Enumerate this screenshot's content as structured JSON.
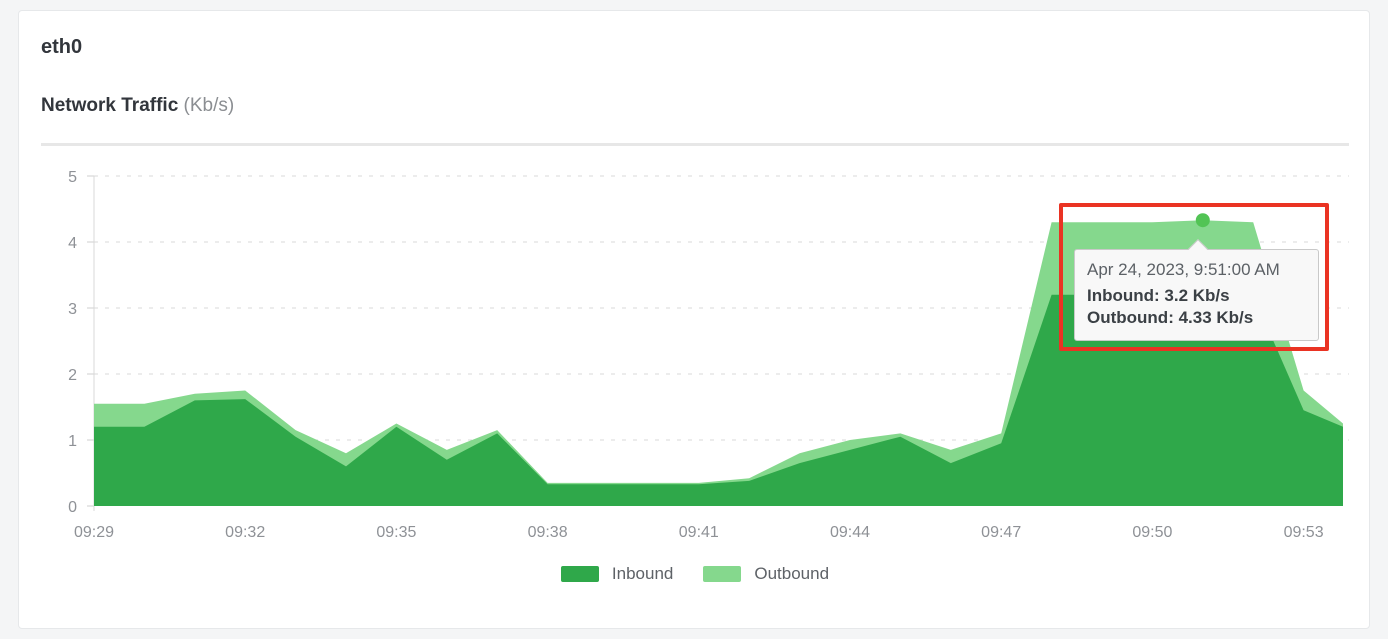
{
  "page": {
    "background_color": "#f4f5f6",
    "card_background": "#ffffff"
  },
  "card": {
    "interface_title": "eth0",
    "chart_heading": "Network Traffic ",
    "chart_heading_unit": "(Kb/s)"
  },
  "chart_data": {
    "type": "area",
    "title": "Network Traffic (Kb/s)",
    "grid": "horizontal-dashed",
    "legend_position": "bottom",
    "x_axis": {
      "tick_labels": [
        "09:29",
        "09:32",
        "09:35",
        "09:38",
        "09:41",
        "09:44",
        "09:47",
        "09:50",
        "09:53"
      ],
      "minutes_per_tick": 3
    },
    "y_axis": {
      "ticks": [
        0,
        1,
        2,
        3,
        4,
        5
      ],
      "range": [
        0,
        5
      ],
      "unit": "Kb/s"
    },
    "x": [
      "09:29",
      "09:30",
      "09:31",
      "09:32",
      "09:33",
      "09:34",
      "09:35",
      "09:36",
      "09:37",
      "09:38",
      "09:39",
      "09:40",
      "09:41",
      "09:42",
      "09:43",
      "09:44",
      "09:45",
      "09:46",
      "09:47",
      "09:48",
      "09:49",
      "09:50",
      "09:51",
      "09:52",
      "09:53",
      "09:54"
    ],
    "series": [
      {
        "name": "Inbound",
        "color": "#2fa84a",
        "values": [
          1.2,
          1.2,
          1.6,
          1.62,
          1.05,
          0.6,
          1.2,
          0.7,
          1.1,
          0.33,
          0.33,
          0.33,
          0.33,
          0.38,
          0.65,
          0.85,
          1.05,
          0.65,
          0.95,
          3.2,
          3.2,
          3.2,
          3.2,
          3.2,
          1.45,
          1.2
        ]
      },
      {
        "name": "Outbound",
        "color": "#85d88d",
        "values": [
          1.55,
          1.55,
          1.7,
          1.75,
          1.15,
          0.8,
          1.25,
          0.85,
          1.15,
          0.35,
          0.35,
          0.35,
          0.35,
          0.42,
          0.8,
          1.0,
          1.1,
          0.85,
          1.1,
          4.3,
          4.3,
          4.3,
          4.33,
          4.3,
          1.75,
          1.25
        ]
      }
    ]
  },
  "legend": {
    "items": [
      {
        "label": "Inbound",
        "color": "#2fa84a"
      },
      {
        "label": "Outbound",
        "color": "#85d88d"
      }
    ]
  },
  "tooltip": {
    "timestamp": "Apr 24, 2023, 9:51:00 AM",
    "inbound_line": "Inbound: 3.2 Kb/s",
    "outbound_line": "Outbound: 4.33 Kb/s",
    "marker_time": "09:51",
    "marker_series": "Outbound",
    "marker_value": 4.33,
    "marker_color": "#52c455"
  },
  "annotation": {
    "shape": "red-rectangle",
    "color": "#ea3323"
  }
}
